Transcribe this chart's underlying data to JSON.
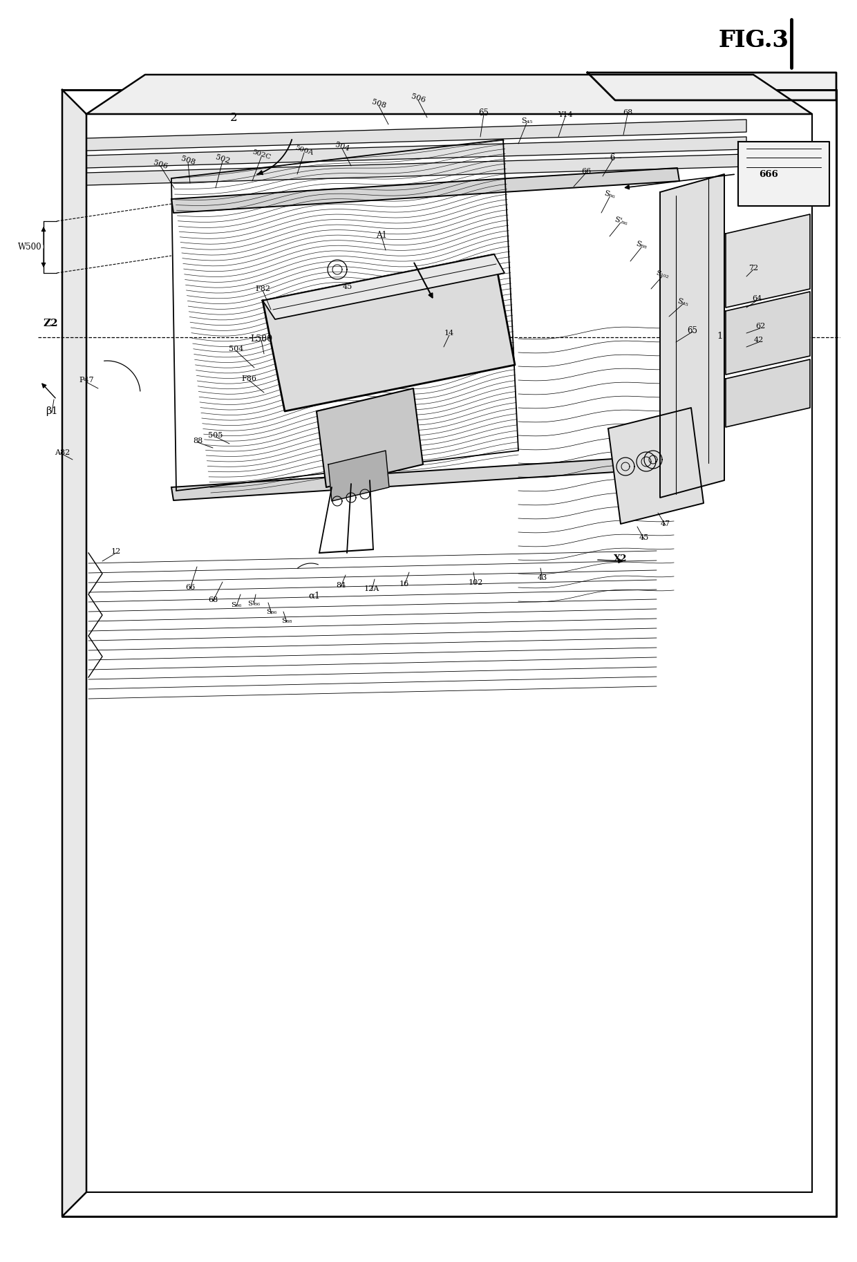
{
  "background": "#ffffff",
  "fig_width": 12.4,
  "fig_height": 18.26,
  "fig_label": "FIG.3",
  "labels": {
    "W500": "W500",
    "2": "2",
    "65_top": "65",
    "S45_top": "S₄₅",
    "Y14": "Y14",
    "66_top": "66",
    "6": "-6-",
    "666": "666",
    "68_top": "68",
    "72": "72",
    "64": "64",
    "62": "62",
    "506_top": "506",
    "508_top": "508",
    "502C": "502C",
    "500A": "500A",
    "504_top": "504",
    "508_left": "508",
    "506_left": "506",
    "502": "502",
    "A1": "A1",
    "45_mid": "45",
    "S86_top": "S₈₆",
    "S86_prime": "S'₈₆",
    "S88": "S₈₈",
    "S102": "S₁₀₂",
    "S45_right": "S₄₅",
    "65_mid": "65",
    "1": "1",
    "42": "42",
    "P47": "P47",
    "Z2": "Z2",
    "L500": "L500",
    "14": "14",
    "F82": "F82",
    "504_mid": "504",
    "F86": "F86",
    "88": "88",
    "505": "505",
    "beta1": "β1",
    "A82": "A82",
    "12": "12",
    "S86_bot1": "S₈₆",
    "S86_prime_bot": "S'₈₆",
    "S86_bot2": "S₈₆",
    "S88_bot": "S₈₈",
    "alpha1": "α1",
    "84": "84",
    "12A": "12A",
    "16": "16",
    "102": "102",
    "43": "43",
    "X2": "X2",
    "45_bot": "45",
    "47": "47",
    "66_bot": "66",
    "68_bot": "68"
  }
}
